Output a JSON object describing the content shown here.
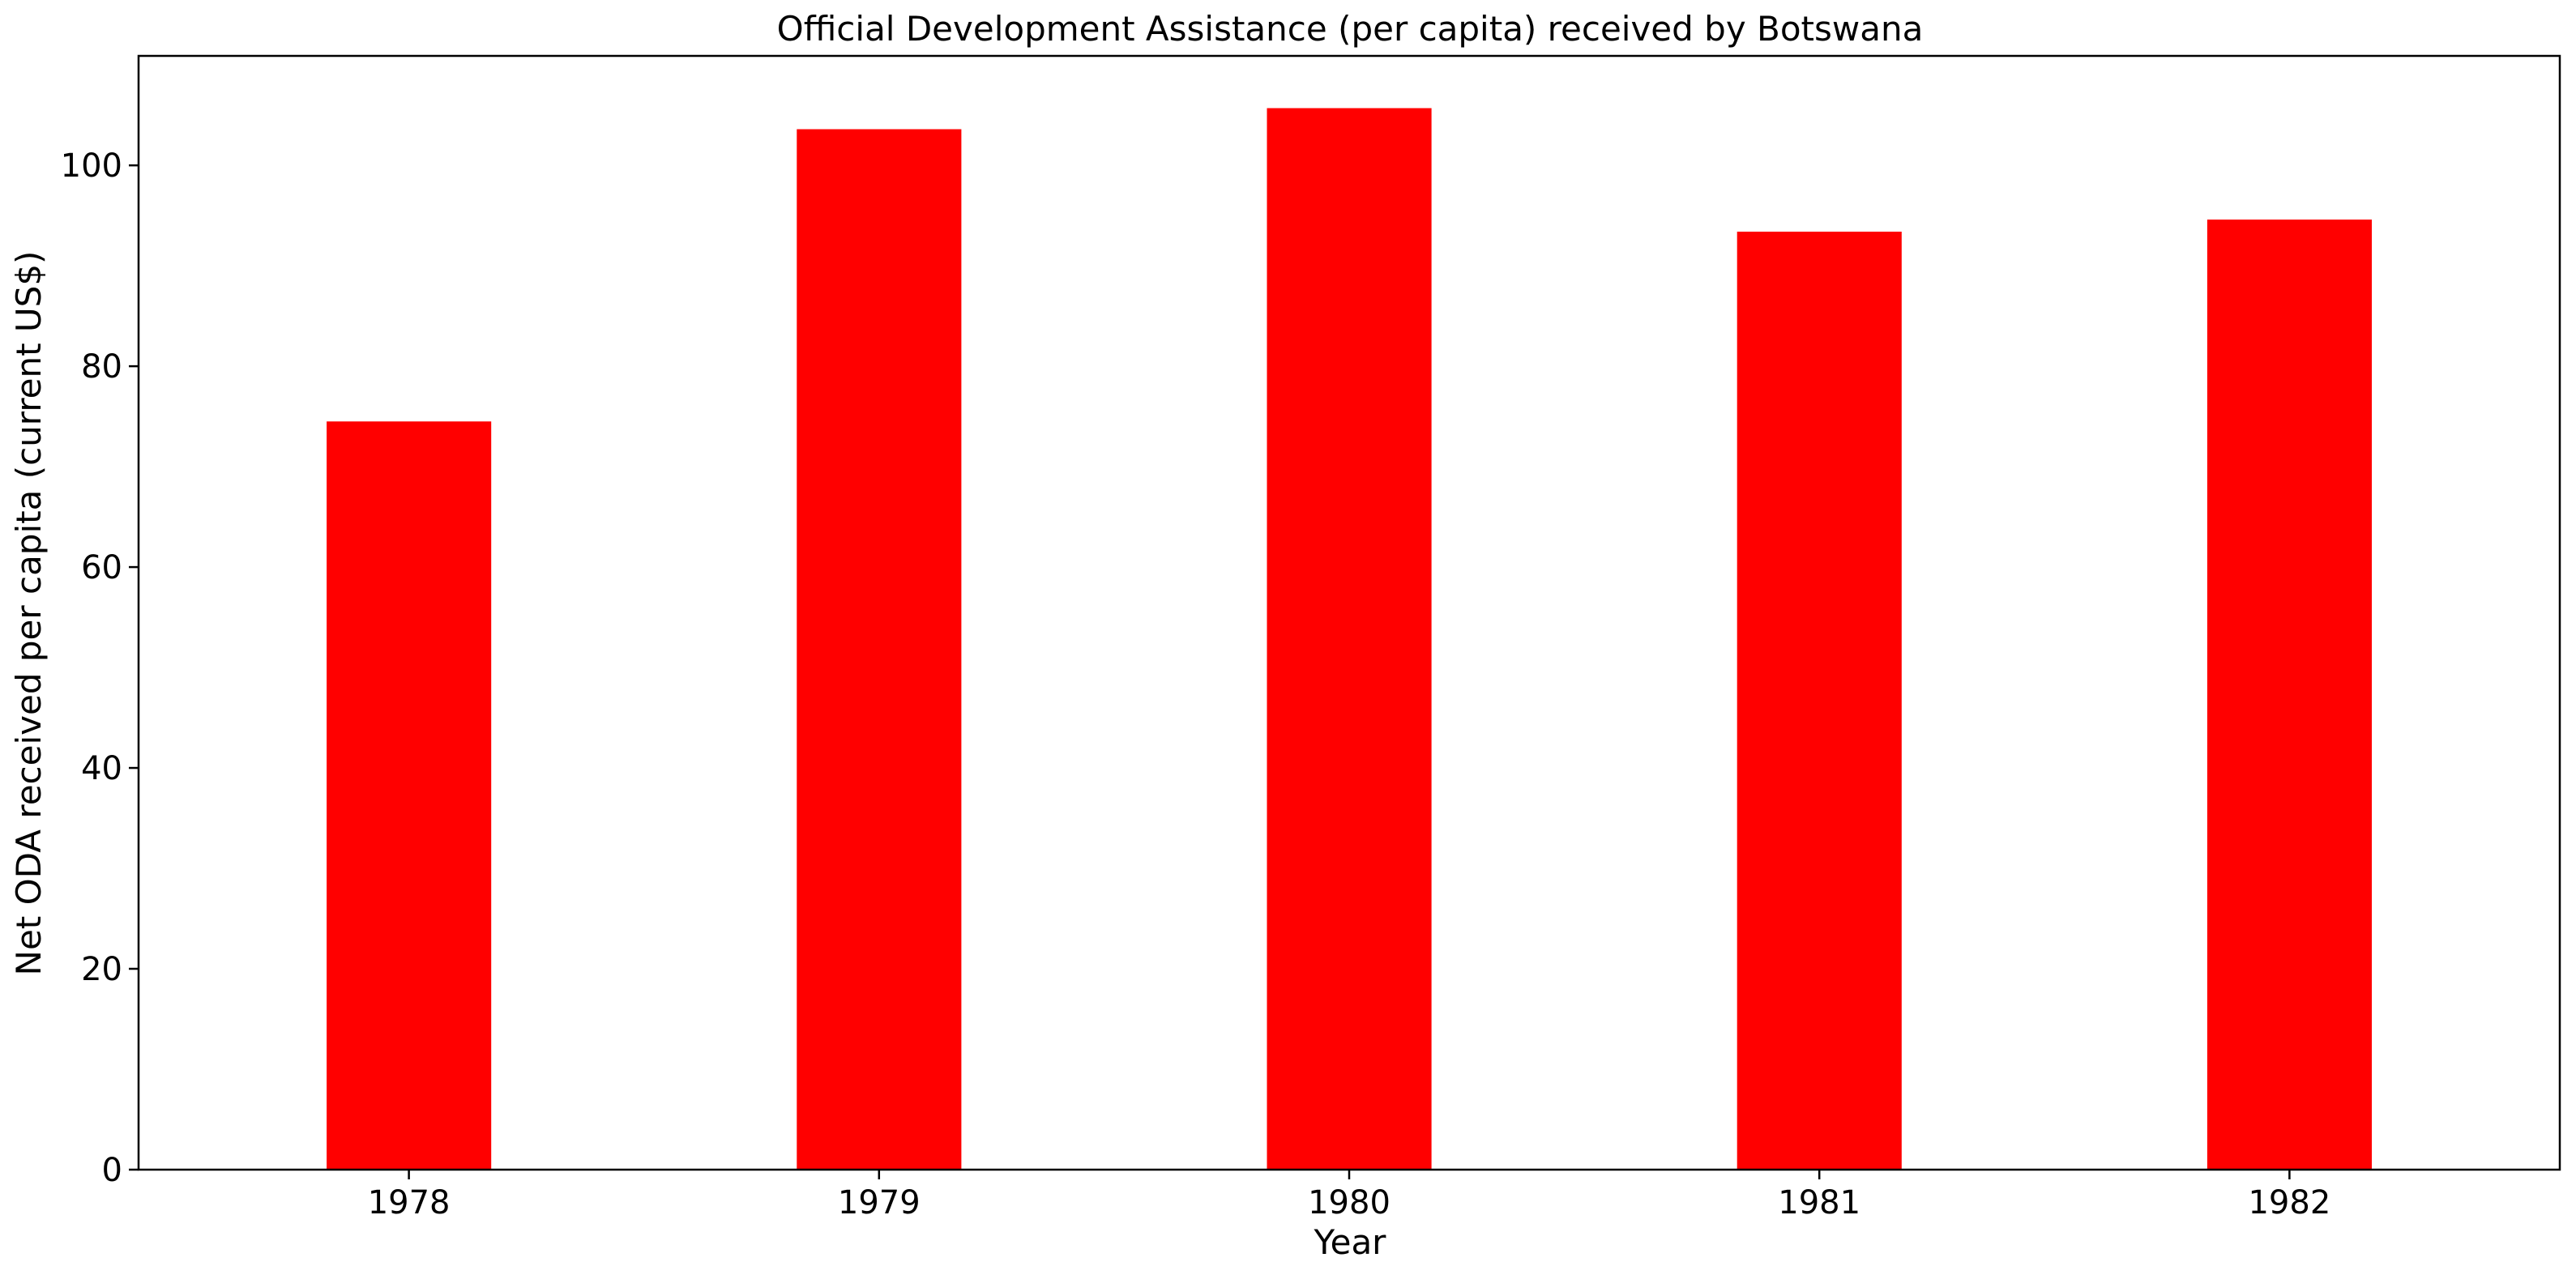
{
  "chart_data": {
    "type": "bar",
    "title": "Official Development Assistance (per capita) received by Botswana",
    "xlabel": "Year",
    "ylabel": "Net ODA received per capita (current US$)",
    "categories": [
      "1978",
      "1979",
      "1980",
      "1981",
      "1982"
    ],
    "values": [
      74.5,
      103.6,
      105.7,
      93.4,
      94.6
    ],
    "ylim": [
      0,
      110.9
    ],
    "yticks": [
      0,
      20,
      40,
      60,
      80,
      100
    ],
    "grid": false,
    "legend": "none",
    "bar_color": "#ff0000"
  }
}
